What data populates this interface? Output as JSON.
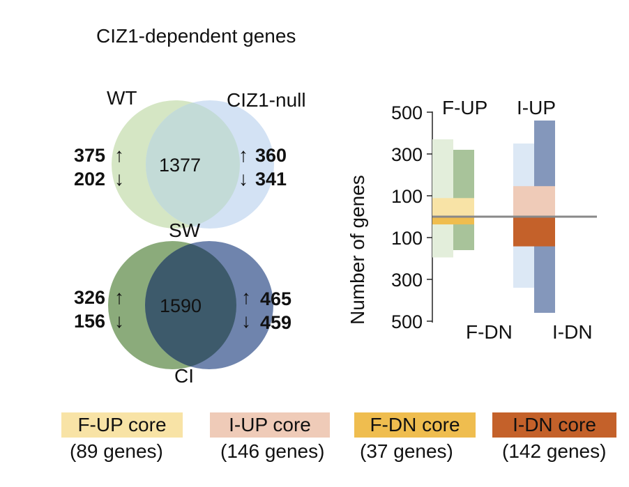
{
  "title": "CIZ1-dependent genes",
  "venn_top": {
    "left_label": "WT",
    "right_label": "CIZ1-null",
    "bottom_label": "SW",
    "left_up": "375",
    "left_down": "202",
    "overlap": "1377",
    "right_up": "360",
    "right_down": "341",
    "colors": {
      "left": "#d5e6c4",
      "right": "#d3e2f4",
      "overlap": "#c3dbd7"
    }
  },
  "venn_bottom": {
    "bottom_label": "CI",
    "left_up": "326",
    "left_down": "156",
    "overlap": "1590",
    "right_up": "465",
    "right_down": "459",
    "colors": {
      "left": "#8bab7b",
      "right": "#6f84ad",
      "overlap": "#3d5a6b"
    }
  },
  "arrows": {
    "up": "↑",
    "down": "↓"
  },
  "chart_data": {
    "type": "bar",
    "ylabel": "Number of genes",
    "ylim": [
      -500,
      500
    ],
    "y_ticks": [
      500,
      300,
      100,
      -100,
      -300,
      -500
    ],
    "y_tick_labels": [
      "500",
      "300",
      "100",
      "100",
      "300",
      "500"
    ],
    "group_labels": {
      "f_up": "F-UP",
      "i_up": "I-UP",
      "f_dn": "F-DN",
      "i_dn": "I-DN"
    },
    "bars": [
      {
        "group": "F",
        "slot": 0,
        "value": 370,
        "color": "#e3eedb"
      },
      {
        "group": "F",
        "slot": 1,
        "value": 320,
        "color": "#a8c39a"
      },
      {
        "group": "I",
        "slot": 0,
        "value": 350,
        "color": "#dce8f5"
      },
      {
        "group": "I",
        "slot": 1,
        "value": 460,
        "color": "#8497bb"
      },
      {
        "group": "F",
        "slot": 0,
        "value": -195,
        "color": "#e3eedb"
      },
      {
        "group": "F",
        "slot": 1,
        "value": -160,
        "color": "#a8c39a"
      },
      {
        "group": "I",
        "slot": 0,
        "value": -340,
        "color": "#dce8f5"
      },
      {
        "group": "I",
        "slot": 1,
        "value": -460,
        "color": "#8497bb"
      }
    ],
    "core_bars": [
      {
        "group": "F",
        "value": 89,
        "color": "#f8e3a6"
      },
      {
        "group": "I",
        "value": 146,
        "color": "#efcbb8"
      },
      {
        "group": "F",
        "value": -37,
        "color": "#efbd4f"
      },
      {
        "group": "I",
        "value": -142,
        "color": "#c4612a"
      }
    ]
  },
  "legend": [
    {
      "label": "F-UP core",
      "count": "(89 genes)",
      "color": "#f8e3a6"
    },
    {
      "label": "I-UP core",
      "count": "(146 genes)",
      "color": "#efcbb8"
    },
    {
      "label": "F-DN core",
      "count": "(37 genes)",
      "color": "#efbd4f"
    },
    {
      "label": "I-DN core",
      "count": "(142 genes)",
      "color": "#c4612a"
    }
  ]
}
